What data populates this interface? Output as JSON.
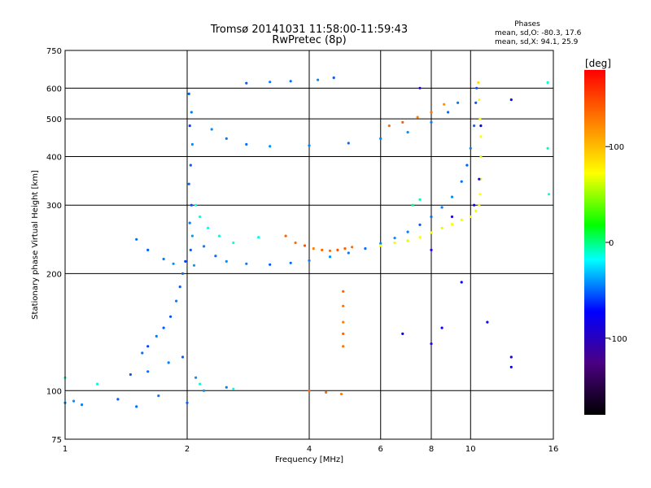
{
  "chart_data": {
    "type": "scatter",
    "title": "Tromsø 20141031 11:58:00-11:59:43",
    "subtitle": "RwPretec (8p)",
    "xlabel": "Frequency [MHz]",
    "ylabel": "Stationary phase Virtual Height [km]",
    "x_scale": "log",
    "y_scale": "log",
    "xlim": [
      1,
      16
    ],
    "ylim": [
      75,
      750
    ],
    "x_ticks": [
      1,
      2,
      4,
      6,
      8,
      10,
      16
    ],
    "x_tick_labels": [
      "1",
      "2",
      "4",
      "6",
      "8",
      "10",
      "16"
    ],
    "y_ticks": [
      75,
      100,
      200,
      300,
      400,
      500,
      600,
      750
    ],
    "y_tick_labels": [
      "75",
      "100",
      "200",
      "300",
      "400",
      "500",
      "600",
      "750"
    ],
    "grid": true,
    "stats": {
      "heading": "Phases",
      "line_o": "mean, sd,O: -80.3, 17.6",
      "line_x": "mean, sd,X:  94.1, 25.9"
    },
    "colorbar": {
      "label": "[deg]",
      "range": [
        -180,
        180
      ],
      "ticks": [
        100,
        0,
        -100
      ],
      "tick_labels": [
        "100",
        "0",
        "-100"
      ]
    },
    "series": [
      {
        "name": "",
        "points": [
          [
            2.02,
            580,
            -110
          ],
          [
            2.05,
            520,
            -100
          ],
          [
            2.03,
            480,
            -120
          ],
          [
            2.06,
            430,
            -95
          ],
          [
            2.04,
            380,
            -110
          ],
          [
            2.02,
            340,
            -105
          ],
          [
            2.05,
            300,
            -115
          ],
          [
            2.03,
            270,
            -100
          ],
          [
            2.06,
            250,
            -90
          ],
          [
            2.04,
            230,
            -110
          ],
          [
            1.98,
            215,
            -120
          ],
          [
            1.95,
            200,
            -105
          ],
          [
            1.92,
            185,
            -110
          ],
          [
            1.88,
            170,
            -100
          ],
          [
            1.82,
            155,
            -115
          ],
          [
            1.75,
            145,
            -110
          ],
          [
            1.68,
            138,
            -100
          ],
          [
            1.6,
            130,
            -120
          ],
          [
            1.55,
            125,
            -105
          ],
          [
            2.08,
            210,
            -90
          ],
          [
            2.2,
            235,
            -100
          ],
          [
            2.35,
            222,
            -105
          ],
          [
            2.5,
            215,
            -95
          ],
          [
            2.8,
            212,
            -100
          ],
          [
            3.2,
            211,
            -110
          ],
          [
            3.6,
            213,
            -105
          ],
          [
            4.0,
            216,
            -100
          ],
          [
            4.5,
            221,
            -95
          ],
          [
            5.0,
            226,
            -100
          ],
          [
            5.5,
            232,
            -105
          ],
          [
            6.0,
            239,
            -100
          ],
          [
            6.5,
            247,
            -95
          ],
          [
            7.0,
            256,
            -100
          ],
          [
            7.5,
            267,
            -110
          ],
          [
            8.0,
            280,
            -105
          ],
          [
            8.5,
            296,
            -100
          ],
          [
            9.0,
            315,
            -95
          ],
          [
            9.5,
            345,
            -105
          ],
          [
            9.8,
            380,
            -110
          ],
          [
            10.0,
            420,
            -100
          ],
          [
            10.2,
            480,
            -105
          ],
          [
            10.3,
            550,
            -110
          ],
          [
            10.35,
            600,
            -115
          ],
          [
            2.3,
            470,
            -95
          ],
          [
            2.5,
            445,
            -100
          ],
          [
            2.8,
            430,
            -105
          ],
          [
            3.2,
            425,
            -95
          ],
          [
            4.0,
            427,
            -100
          ],
          [
            5.0,
            433,
            -105
          ],
          [
            6.0,
            445,
            -100
          ],
          [
            7.0,
            462,
            -95
          ],
          [
            8.0,
            490,
            -100
          ],
          [
            8.8,
            520,
            -105
          ],
          [
            9.3,
            550,
            -100
          ],
          [
            2.8,
            618,
            -110
          ],
          [
            3.2,
            622,
            -100
          ],
          [
            3.6,
            625,
            -105
          ],
          [
            4.2,
            630,
            -95
          ],
          [
            4.6,
            638,
            -110
          ],
          [
            1.5,
            245,
            -105
          ],
          [
            1.6,
            230,
            -110
          ],
          [
            1.75,
            218,
            -100
          ],
          [
            1.85,
            212,
            -95
          ],
          [
            1.0,
            93,
            -90
          ],
          [
            1.05,
            94,
            -95
          ],
          [
            1.1,
            92,
            -100
          ],
          [
            1.35,
            95,
            -110
          ],
          [
            1.5,
            91,
            -105
          ],
          [
            1.7,
            97,
            -100
          ],
          [
            2.0,
            93,
            -110
          ],
          [
            2.2,
            100,
            -95
          ],
          [
            2.5,
            102,
            -100
          ],
          [
            1.45,
            110,
            -110
          ],
          [
            1.6,
            112,
            -105
          ],
          [
            1.8,
            118,
            -100
          ],
          [
            1.95,
            122,
            -110
          ],
          [
            2.1,
            108,
            -95
          ]
        ]
      },
      {
        "name": "",
        "points": [
          [
            3.5,
            250,
            150
          ],
          [
            3.7,
            240,
            145
          ],
          [
            3.9,
            236,
            155
          ],
          [
            4.1,
            232,
            140
          ],
          [
            4.3,
            230,
            150
          ],
          [
            4.5,
            229,
            145
          ],
          [
            4.7,
            230,
            155
          ],
          [
            4.9,
            232,
            150
          ],
          [
            5.1,
            234,
            145
          ],
          [
            6.3,
            480,
            145
          ],
          [
            6.8,
            490,
            150
          ],
          [
            7.4,
            505,
            140
          ],
          [
            8.0,
            520,
            145
          ],
          [
            8.6,
            545,
            135
          ],
          [
            10.45,
            620,
            110
          ],
          [
            10.5,
            560,
            100
          ],
          [
            10.55,
            500,
            95
          ],
          [
            10.6,
            450,
            100
          ],
          [
            10.6,
            400,
            90
          ],
          [
            10.6,
            350,
            95
          ],
          [
            10.55,
            320,
            100
          ],
          [
            10.5,
            300,
            105
          ],
          [
            10.3,
            290,
            95
          ],
          [
            10.0,
            280,
            100
          ],
          [
            9.5,
            275,
            95
          ],
          [
            9.0,
            268,
            100
          ],
          [
            8.5,
            262,
            90
          ],
          [
            8.0,
            255,
            95
          ],
          [
            7.5,
            248,
            100
          ],
          [
            7.0,
            243,
            90
          ],
          [
            6.5,
            240,
            95
          ],
          [
            6.0,
            236,
            100
          ],
          [
            4.85,
            180,
            150
          ],
          [
            4.85,
            165,
            145
          ],
          [
            4.85,
            150,
            140
          ],
          [
            4.85,
            140,
            150
          ],
          [
            4.85,
            130,
            145
          ],
          [
            4.0,
            100,
            150
          ],
          [
            4.4,
            99,
            145
          ],
          [
            4.8,
            98,
            140
          ]
        ]
      },
      {
        "name": "",
        "points": [
          [
            2.1,
            300,
            -60
          ],
          [
            2.15,
            280,
            -50
          ],
          [
            2.25,
            262,
            -55
          ],
          [
            2.4,
            250,
            -45
          ],
          [
            2.6,
            240,
            -55
          ],
          [
            3.0,
            248,
            -50
          ],
          [
            1.0,
            108,
            -40
          ],
          [
            1.2,
            104,
            -50
          ],
          [
            2.15,
            104,
            -45
          ],
          [
            2.6,
            101,
            -55
          ],
          [
            7.2,
            300,
            -20
          ],
          [
            7.5,
            310,
            -30
          ],
          [
            15.5,
            620,
            -45
          ],
          [
            15.5,
            420,
            -40
          ],
          [
            15.6,
            320,
            -50
          ]
        ]
      },
      {
        "name": "",
        "points": [
          [
            10.6,
            480,
            -140
          ],
          [
            10.5,
            350,
            -150
          ],
          [
            10.2,
            300,
            -145
          ],
          [
            9.0,
            280,
            -150
          ],
          [
            9.5,
            190,
            -140
          ],
          [
            8.0,
            230,
            -150
          ],
          [
            8.5,
            145,
            -145
          ],
          [
            6.8,
            140,
            -140
          ],
          [
            8.0,
            132,
            -150
          ],
          [
            12.6,
            122,
            -145
          ],
          [
            12.6,
            115,
            -140
          ],
          [
            12.6,
            560,
            -135
          ],
          [
            11.0,
            150,
            -145
          ],
          [
            7.5,
            600,
            -150
          ]
        ]
      }
    ]
  }
}
